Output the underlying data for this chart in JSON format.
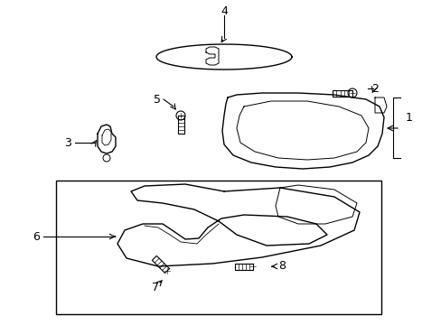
{
  "background_color": "#ffffff",
  "line_color": "#000000",
  "lw_main": 1.0,
  "lw_thin": 0.6,
  "fig_width": 4.89,
  "fig_height": 3.6,
  "dpi": 100
}
